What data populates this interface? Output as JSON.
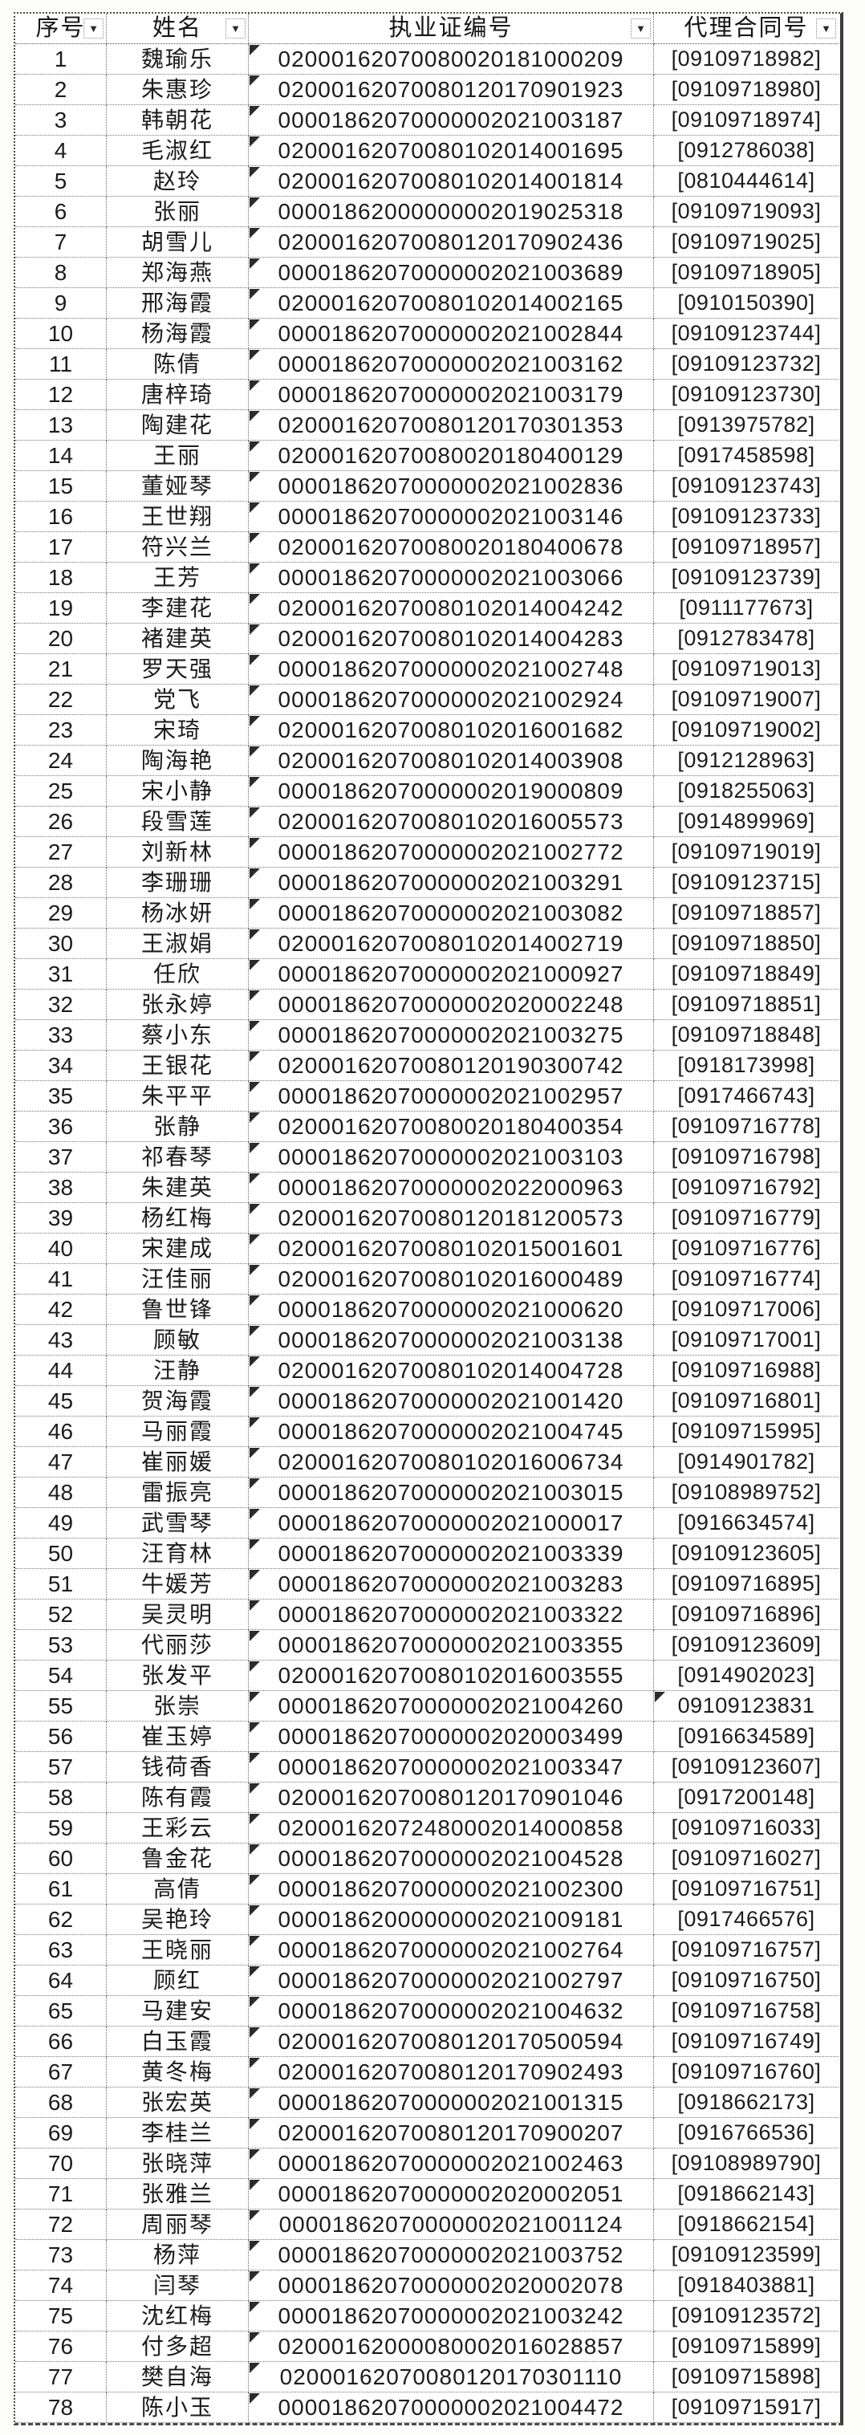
{
  "colors": {
    "background": "#ffffff",
    "text": "#1c1c1c",
    "gridline": "#6a6a6a",
    "marker": "#2b2b2b"
  },
  "table": {
    "columns": [
      {
        "label": "序号"
      },
      {
        "label": "姓名"
      },
      {
        "label": "执业证编号"
      },
      {
        "label": "代理合同号"
      }
    ],
    "filter_icon": "▼",
    "cert_marker_all": true,
    "contract_marker_rows": [
      55
    ],
    "rows": [
      [
        "1",
        "魏瑜乐",
        "02000162070080020181000209",
        "[09109718982]"
      ],
      [
        "2",
        "朱惠珍",
        "02000162070080120170901923",
        "[09109718980]"
      ],
      [
        "3",
        "韩朝花",
        "00001862070000002021003187",
        "[09109718974]"
      ],
      [
        "4",
        "毛淑红",
        "02000162070080102014001695",
        "[0912786038]"
      ],
      [
        "5",
        "赵玲",
        "02000162070080102014001814",
        "[0810444614]"
      ],
      [
        "6",
        "张丽",
        "00001862000000002019025318",
        "[09109719093]"
      ],
      [
        "7",
        "胡雪儿",
        "02000162070080120170902436",
        "[09109719025]"
      ],
      [
        "8",
        "郑海燕",
        "00001862070000002021003689",
        "[09109718905]"
      ],
      [
        "9",
        "邢海霞",
        "02000162070080102014002165",
        "[0910150390]"
      ],
      [
        "10",
        "杨海霞",
        "00001862070000002021002844",
        "[09109123744]"
      ],
      [
        "11",
        "陈倩",
        "00001862070000002021003162",
        "[09109123732]"
      ],
      [
        "12",
        "唐梓琦",
        "00001862070000002021003179",
        "[09109123730]"
      ],
      [
        "13",
        "陶建花",
        "02000162070080120170301353",
        "[0913975782]"
      ],
      [
        "14",
        "王丽",
        "02000162070080020180400129",
        "[0917458598]"
      ],
      [
        "15",
        "董娅琴",
        "00001862070000002021002836",
        "[09109123743]"
      ],
      [
        "16",
        "王世翔",
        "00001862070000002021003146",
        "[09109123733]"
      ],
      [
        "17",
        "符兴兰",
        "02000162070080020180400678",
        "[09109718957]"
      ],
      [
        "18",
        "王芳",
        "00001862070000002021003066",
        "[09109123739]"
      ],
      [
        "19",
        "李建花",
        "02000162070080102014004242",
        "[0911177673]"
      ],
      [
        "20",
        "褚建英",
        "02000162070080102014004283",
        "[0912783478]"
      ],
      [
        "21",
        "罗天强",
        "00001862070000002021002748",
        "[09109719013]"
      ],
      [
        "22",
        "党飞",
        "00001862070000002021002924",
        "[09109719007]"
      ],
      [
        "23",
        "宋琦",
        "02000162070080102016001682",
        "[09109719002]"
      ],
      [
        "24",
        "陶海艳",
        "02000162070080102014003908",
        "[0912128963]"
      ],
      [
        "25",
        "宋小静",
        "00001862070000002019000809",
        "[0918255063]"
      ],
      [
        "26",
        "段雪莲",
        "02000162070080102016005573",
        "[0914899969]"
      ],
      [
        "27",
        "刘新林",
        "00001862070000002021002772",
        "[09109719019]"
      ],
      [
        "28",
        "李珊珊",
        "00001862070000002021003291",
        "[09109123715]"
      ],
      [
        "29",
        "杨冰妍",
        "00001862070000002021003082",
        "[09109718857]"
      ],
      [
        "30",
        "王淑娟",
        "02000162070080102014002719",
        "[09109718850]"
      ],
      [
        "31",
        "任欣",
        "00001862070000002021000927",
        "[09109718849]"
      ],
      [
        "32",
        "张永婷",
        "00001862070000002020002248",
        "[09109718851]"
      ],
      [
        "33",
        "蔡小东",
        "00001862070000002021003275",
        "[09109718848]"
      ],
      [
        "34",
        "王银花",
        "02000162070080120190300742",
        "[0918173998]"
      ],
      [
        "35",
        "朱平平",
        "00001862070000002021002957",
        "[0917466743]"
      ],
      [
        "36",
        "张静",
        "02000162070080020180400354",
        "[09109716778]"
      ],
      [
        "37",
        "祁春琴",
        "00001862070000002021003103",
        "[09109716798]"
      ],
      [
        "38",
        "朱建英",
        "00001862070000002022000963",
        "[09109716792]"
      ],
      [
        "39",
        "杨红梅",
        "02000162070080120181200573",
        "[09109716779]"
      ],
      [
        "40",
        "宋建成",
        "02000162070080102015001601",
        "[09109716776]"
      ],
      [
        "41",
        "汪佳丽",
        "02000162070080102016000489",
        "[09109716774]"
      ],
      [
        "42",
        "鲁世锋",
        "00001862070000002021000620",
        "[09109717006]"
      ],
      [
        "43",
        "顾敏",
        "00001862070000002021003138",
        "[09109717001]"
      ],
      [
        "44",
        "汪静",
        "02000162070080102014004728",
        "[09109716988]"
      ],
      [
        "45",
        "贺海霞",
        "00001862070000002021001420",
        "[09109716801]"
      ],
      [
        "46",
        "马丽霞",
        "00001862070000002021004745",
        "[09109715995]"
      ],
      [
        "47",
        "崔丽媛",
        "02000162070080102016006734",
        "[0914901782]"
      ],
      [
        "48",
        "雷振亮",
        "00001862070000002021003015",
        "[09108989752]"
      ],
      [
        "49",
        "武雪琴",
        "00001862070000002021000017",
        "[0916634574]"
      ],
      [
        "50",
        "汪育林",
        "00001862070000002021003339",
        "[09109123605]"
      ],
      [
        "51",
        "牛媛芳",
        "00001862070000002021003283",
        "[09109716895]"
      ],
      [
        "52",
        "吴灵明",
        "00001862070000002021003322",
        "[09109716896]"
      ],
      [
        "53",
        "代丽莎",
        "00001862070000002021003355",
        "[09109123609]"
      ],
      [
        "54",
        "张发平",
        "02000162070080102016003555",
        "[0914902023]"
      ],
      [
        "55",
        "张崇",
        "00001862070000002021004260",
        "09109123831"
      ],
      [
        "56",
        "崔玉婷",
        "00001862070000002020003499",
        "[0916634589]"
      ],
      [
        "57",
        "钱荷香",
        "00001862070000002021003347",
        "[09109123607]"
      ],
      [
        "58",
        "陈有霞",
        "02000162070080120170901046",
        "[0917200148]"
      ],
      [
        "59",
        "王彩云",
        "02000162072480002014000858",
        "[09109716033]"
      ],
      [
        "60",
        "鲁金花",
        "00001862070000002021004528",
        "[09109716027]"
      ],
      [
        "61",
        "高倩",
        "00001862070000002021002300",
        "[09109716751]"
      ],
      [
        "62",
        "吴艳玲",
        "00001862000000002021009181",
        "[0917466576]"
      ],
      [
        "63",
        "王晓丽",
        "00001862070000002021002764",
        "[09109716757]"
      ],
      [
        "64",
        "顾红",
        "00001862070000002021002797",
        "[09109716750]"
      ],
      [
        "65",
        "马建安",
        "00001862070000002021004632",
        "[09109716758]"
      ],
      [
        "66",
        "白玉霞",
        "02000162070080120170500594",
        "[09109716749]"
      ],
      [
        "67",
        "黄冬梅",
        "02000162070080120170902493",
        "[09109716760]"
      ],
      [
        "68",
        "张宏英",
        "00001862070000002021001315",
        "[0918662173]"
      ],
      [
        "69",
        "李桂兰",
        "02000162070080120170900207",
        "[0916766536]"
      ],
      [
        "70",
        "张晓萍",
        "00001862070000002021002463",
        "[09108989790]"
      ],
      [
        "71",
        "张雅兰",
        "00001862070000002020002051",
        "[0918662143]"
      ],
      [
        "72",
        "周丽琴",
        "00001862070000002021001124",
        "[0918662154]"
      ],
      [
        "73",
        "杨萍",
        "00001862070000002021003752",
        "[09109123599]"
      ],
      [
        "74",
        "闫琴",
        "00001862070000002020002078",
        "[0918403881]"
      ],
      [
        "75",
        "沈红梅",
        "00001862070000002021003242",
        "[09109123572]"
      ],
      [
        "76",
        "付多超",
        "02000162000080002016028857",
        "[09109715899]"
      ],
      [
        "77",
        "樊自海",
        "02000162070080120170301110",
        "[09109715898]"
      ],
      [
        "78",
        "陈小玉",
        "00001862070000002021004472",
        "[09109715917]"
      ]
    ]
  }
}
